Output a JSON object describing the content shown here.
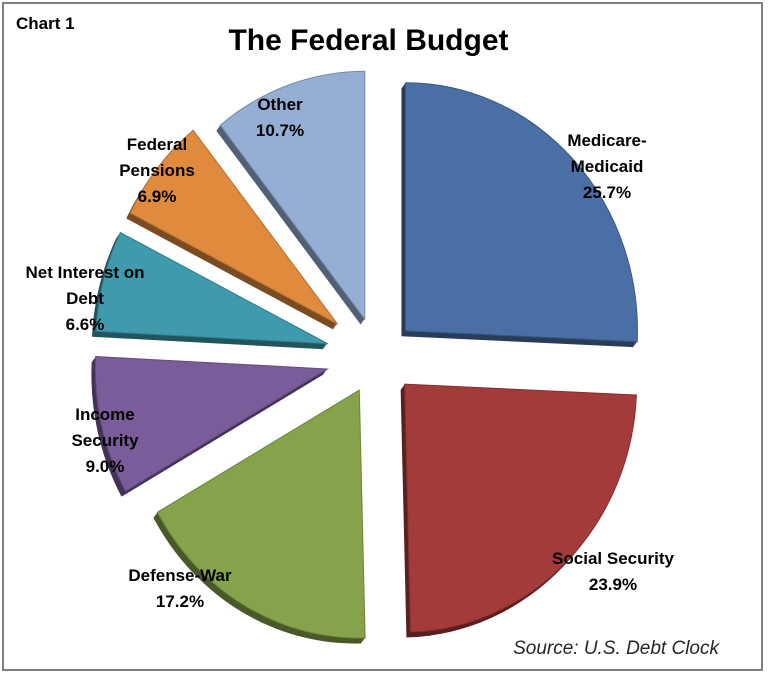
{
  "chart_data": {
    "type": "pie",
    "chart_number": "Chart 1",
    "title": "The Federal Budget",
    "source": "Source: U.S. Debt Clock",
    "slices": [
      {
        "label_lines": [
          "Medicare-",
          "Medicaid",
          "25.7%"
        ],
        "name": "Medicare-Medicaid",
        "value": 25.7,
        "color": "#4a6fa5"
      },
      {
        "label_lines": [
          "Social Security",
          "23.9%"
        ],
        "name": "Social Security",
        "value": 23.9,
        "color": "#a23b39"
      },
      {
        "label_lines": [
          "Defense-War",
          "17.2%"
        ],
        "name": "Defense-War",
        "value": 17.2,
        "color": "#86a24a"
      },
      {
        "label_lines": [
          "Income",
          "Security",
          "9.0%"
        ],
        "name": "Income Security",
        "value": 9.0,
        "color": "#7a5c9b"
      },
      {
        "label_lines": [
          "Net Interest on",
          "Debt",
          "6.6%"
        ],
        "name": "Net Interest on Debt",
        "value": 6.6,
        "color": "#3f9aad"
      },
      {
        "label_lines": [
          "Federal",
          "Pensions",
          "6.9%"
        ],
        "name": "Federal Pensions",
        "value": 6.9,
        "color": "#e08a3e"
      },
      {
        "label_lines": [
          "Other",
          "10.7%"
        ],
        "name": "Other",
        "value": 10.7,
        "color": "#95aed4"
      }
    ]
  }
}
